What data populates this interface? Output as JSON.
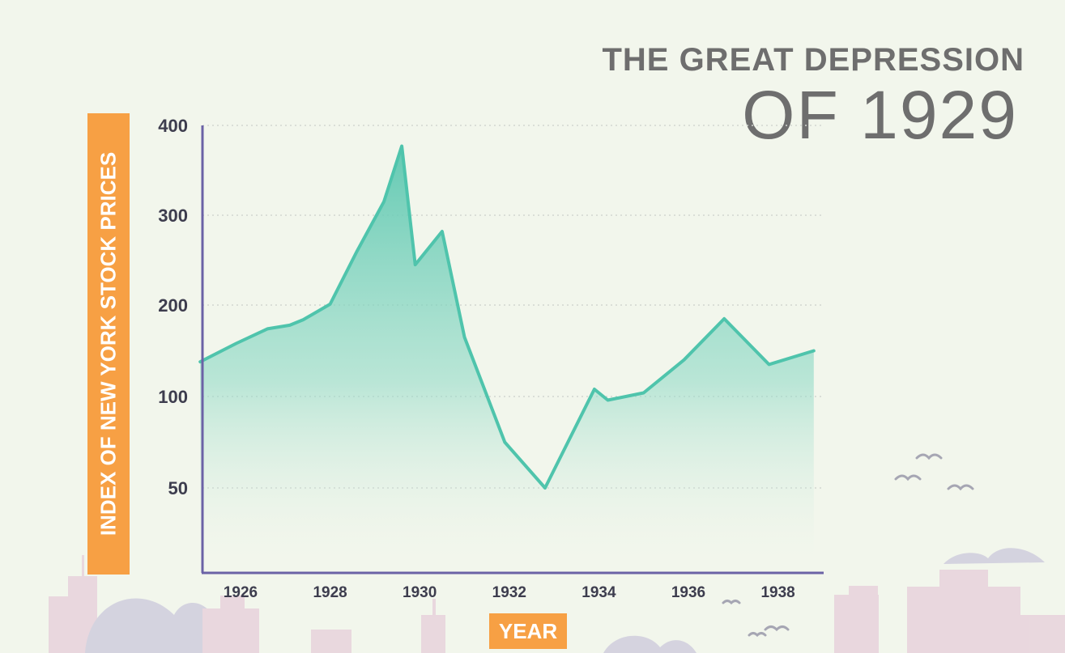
{
  "title": {
    "line1": "THE GREAT DEPRESSION",
    "line2": "OF 1929"
  },
  "chart_data": {
    "type": "area",
    "title": "THE GREAT DEPRESSION OF 1929",
    "xlabel": "YEAR",
    "ylabel": "INDEX OF NEW YORK STOCK PRICES",
    "y_ticks": [
      50,
      100,
      200,
      300,
      400
    ],
    "x_ticks": [
      "1926",
      "1928",
      "1930",
      "1932",
      "1934",
      "1936",
      "1938"
    ],
    "grid": true,
    "series": [
      {
        "x": [
          1925.1,
          1925.9,
          1926.6,
          1927.1,
          1927.4,
          1928.0,
          1928.6,
          1929.2,
          1929.6,
          1929.9,
          1930.5,
          1931.0,
          1931.9,
          1932.8,
          1933.9,
          1934.2,
          1935.0,
          1935.9,
          1936.8,
          1937.8,
          1938.8
        ],
        "values": [
          138,
          158,
          174,
          178,
          184,
          201,
          260,
          315,
          377,
          245,
          282,
          165,
          75,
          50,
          108,
          98,
          104,
          140,
          185,
          135,
          150
        ],
        "color": "#4fc4ac"
      }
    ],
    "colors": {
      "line": "#4fc4ac",
      "fill_top": "#5cc7b0",
      "axis": "#6b62a6",
      "grid": "#d2d5d0",
      "label_bg": "#f7a044"
    }
  }
}
